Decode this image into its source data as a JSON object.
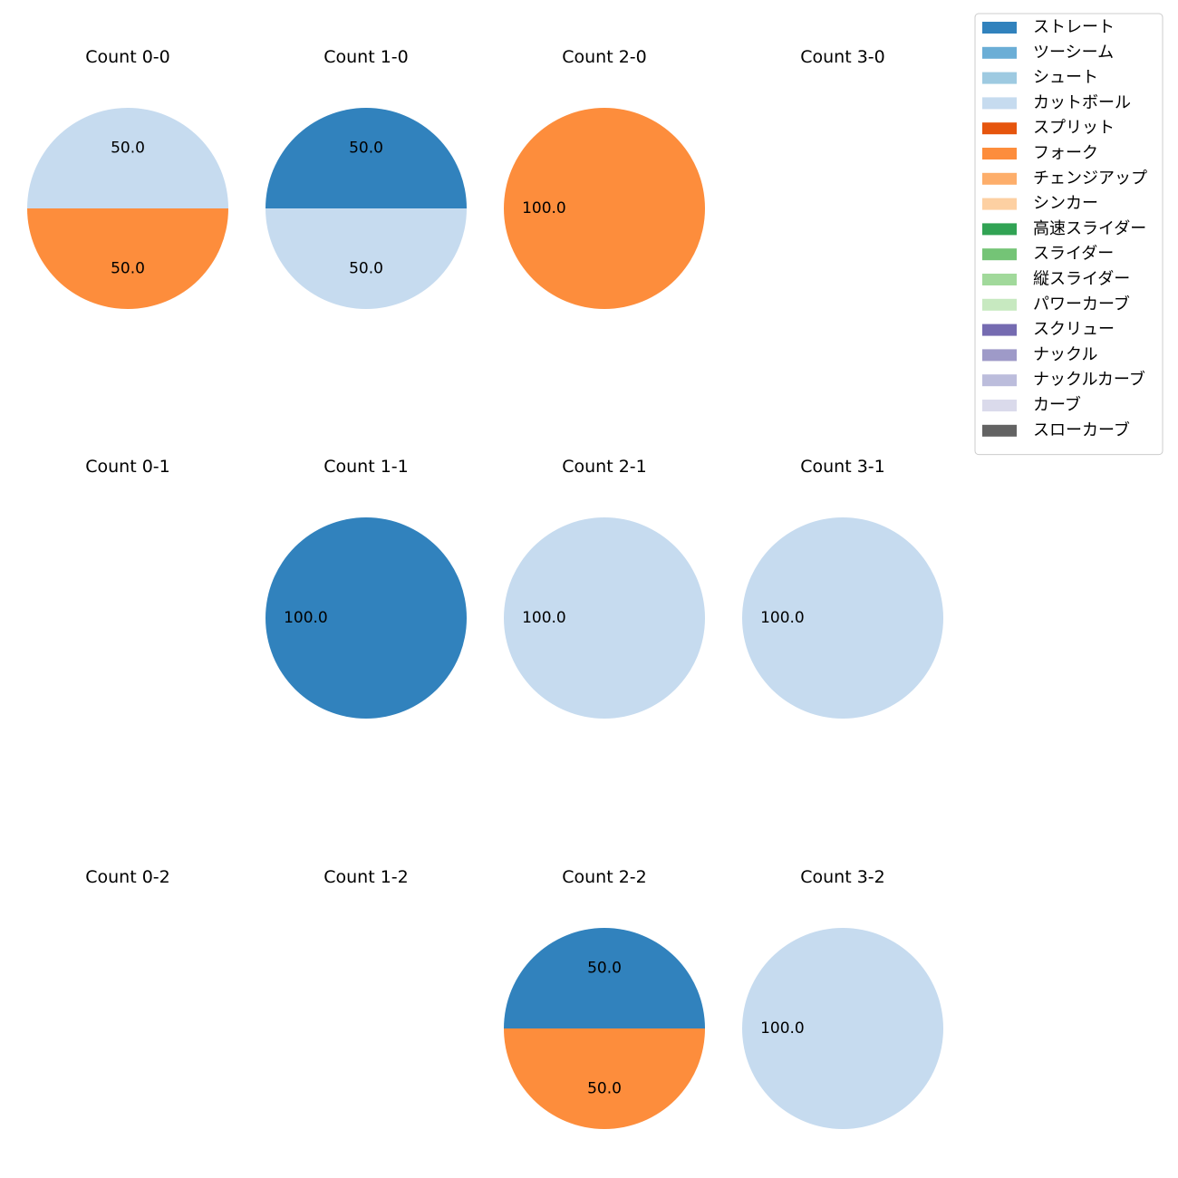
{
  "chart_data": {
    "type": "pie",
    "layout": "grid",
    "rows": 3,
    "cols": 4,
    "autopct_format": "%.1f",
    "legend": {
      "placement": "top-right",
      "entries": [
        {
          "label": "ストレート",
          "color": "#3182bd"
        },
        {
          "label": "ツーシーム",
          "color": "#6baed6"
        },
        {
          "label": "シュート",
          "color": "#9ecae1"
        },
        {
          "label": "カットボール",
          "color": "#c6dbef"
        },
        {
          "label": "スプリット",
          "color": "#e6550d"
        },
        {
          "label": "フォーク",
          "color": "#fd8d3c"
        },
        {
          "label": "チェンジアップ",
          "color": "#fdae6b"
        },
        {
          "label": "シンカー",
          "color": "#fdd0a2"
        },
        {
          "label": "高速スライダー",
          "color": "#31a354"
        },
        {
          "label": "スライダー",
          "color": "#74c476"
        },
        {
          "label": "縦スライダー",
          "color": "#a1d99b"
        },
        {
          "label": "パワーカーブ",
          "color": "#c7e9c0"
        },
        {
          "label": "スクリュー",
          "color": "#756bb1"
        },
        {
          "label": "ナックル",
          "color": "#9e9ac8"
        },
        {
          "label": "ナックルカーブ",
          "color": "#bcbddc"
        },
        {
          "label": "カーブ",
          "color": "#dadaeb"
        },
        {
          "label": "スローカーブ",
          "color": "#636363"
        }
      ]
    },
    "panels": [
      {
        "title": "Count 0-0",
        "row": 0,
        "col": 0,
        "slices": [
          {
            "label": "カットボール",
            "value": 50.0,
            "color": "#c6dbef"
          },
          {
            "label": "フォーク",
            "value": 50.0,
            "color": "#fd8d3c"
          }
        ]
      },
      {
        "title": "Count 1-0",
        "row": 0,
        "col": 1,
        "slices": [
          {
            "label": "ストレート",
            "value": 50.0,
            "color": "#3182bd"
          },
          {
            "label": "カットボール",
            "value": 50.0,
            "color": "#c6dbef"
          }
        ]
      },
      {
        "title": "Count 2-0",
        "row": 0,
        "col": 2,
        "slices": [
          {
            "label": "フォーク",
            "value": 100.0,
            "color": "#fd8d3c"
          }
        ]
      },
      {
        "title": "Count 3-0",
        "row": 0,
        "col": 3,
        "slices": []
      },
      {
        "title": "Count 0-1",
        "row": 1,
        "col": 0,
        "slices": []
      },
      {
        "title": "Count 1-1",
        "row": 1,
        "col": 1,
        "slices": [
          {
            "label": "ストレート",
            "value": 100.0,
            "color": "#3182bd"
          }
        ]
      },
      {
        "title": "Count 2-1",
        "row": 1,
        "col": 2,
        "slices": [
          {
            "label": "カットボール",
            "value": 100.0,
            "color": "#c6dbef"
          }
        ]
      },
      {
        "title": "Count 3-1",
        "row": 1,
        "col": 3,
        "slices": [
          {
            "label": "カットボール",
            "value": 100.0,
            "color": "#c6dbef"
          }
        ]
      },
      {
        "title": "Count 0-2",
        "row": 2,
        "col": 0,
        "slices": []
      },
      {
        "title": "Count 1-2",
        "row": 2,
        "col": 1,
        "slices": []
      },
      {
        "title": "Count 2-2",
        "row": 2,
        "col": 2,
        "slices": [
          {
            "label": "ストレート",
            "value": 50.0,
            "color": "#3182bd"
          },
          {
            "label": "フォーク",
            "value": 50.0,
            "color": "#fd8d3c"
          }
        ]
      },
      {
        "title": "Count 3-2",
        "row": 2,
        "col": 3,
        "slices": [
          {
            "label": "カットボール",
            "value": 100.0,
            "color": "#c6dbef"
          }
        ]
      }
    ]
  }
}
